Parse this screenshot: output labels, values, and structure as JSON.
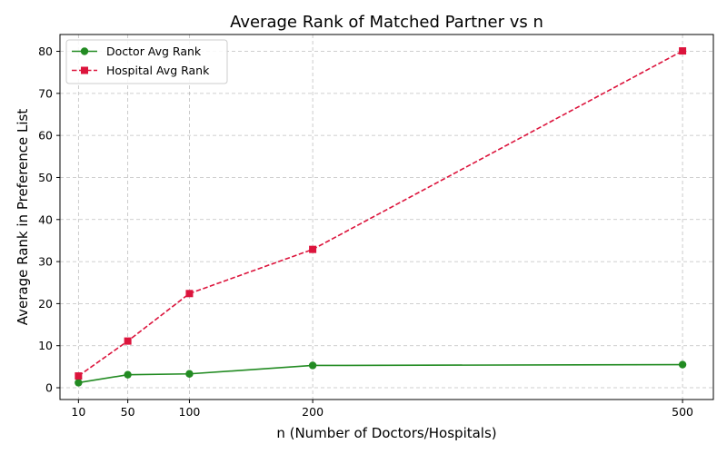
{
  "chart_data": {
    "type": "line",
    "title": "Average Rank of Matched Partner vs n",
    "xlabel": "n (Number of Doctors/Hospitals)",
    "ylabel": "Average Rank in Preference List",
    "x": [
      10,
      50,
      100,
      200,
      500
    ],
    "xticks": [
      10,
      50,
      100,
      200,
      500
    ],
    "xlim": [
      -5,
      525
    ],
    "yticks": [
      0,
      10,
      20,
      30,
      40,
      50,
      60,
      70,
      80
    ],
    "ylim": [
      -2.8,
      84
    ],
    "grid": true,
    "legend_position": "top-left",
    "series": [
      {
        "name": "Doctor Avg Rank",
        "values": [
          1.2,
          3.1,
          3.3,
          5.3,
          5.5
        ],
        "color": "#228b22",
        "line_style": "solid",
        "marker": "circle"
      },
      {
        "name": "Hospital Avg Rank",
        "values": [
          2.8,
          11.1,
          22.4,
          32.9,
          80.1
        ],
        "color": "#dc143c",
        "line_style": "dashed",
        "marker": "square"
      }
    ]
  }
}
